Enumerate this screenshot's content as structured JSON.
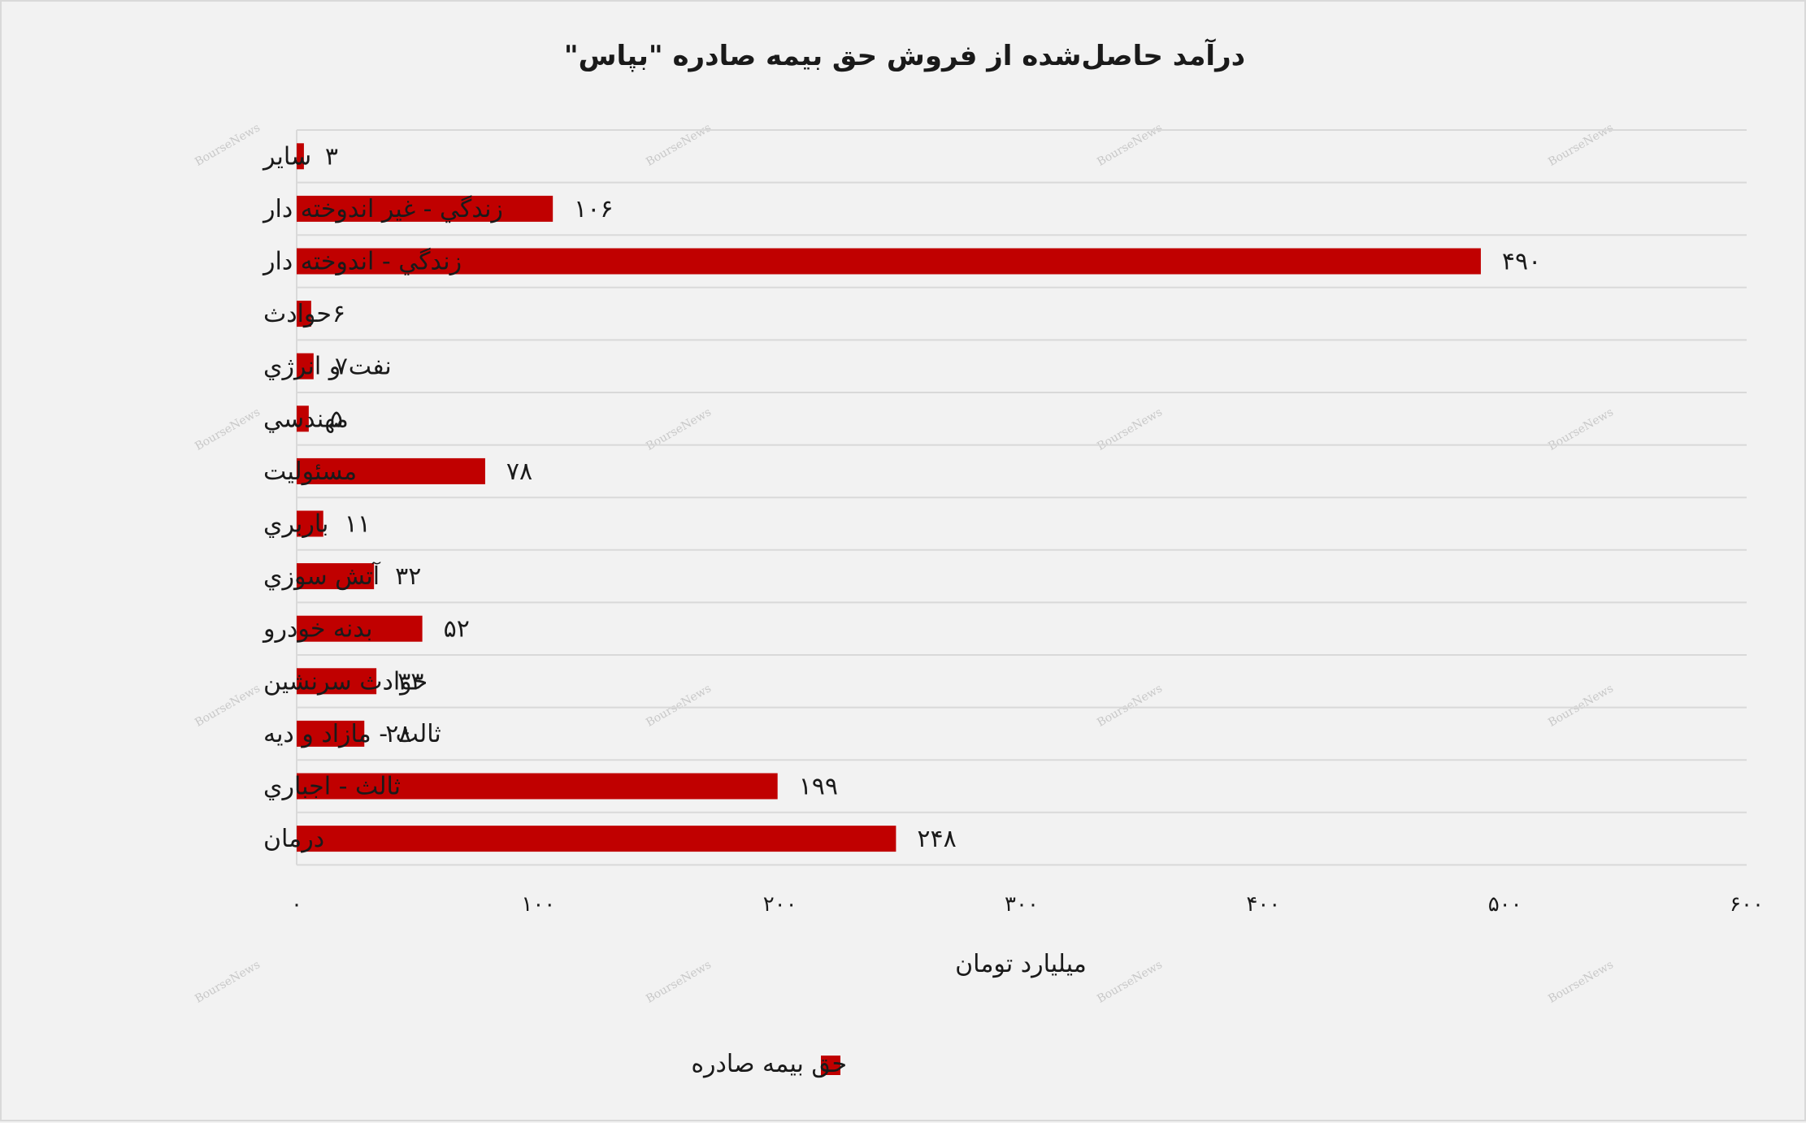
{
  "chart_data": {
    "type": "bar",
    "orientation": "horizontal",
    "title": "درآمد حاصل‌شده از فروش حق بیمه صادره \"بپاس\"",
    "xlabel": "میلیارد تومان",
    "xlim": [
      0,
      600
    ],
    "x_ticks": [
      0,
      100,
      200,
      300,
      400,
      500,
      600
    ],
    "x_tick_labels": [
      "۰",
      "۱۰۰",
      "۲۰۰",
      "۳۰۰",
      "۴۰۰",
      "۵۰۰",
      "۶۰۰"
    ],
    "categories": [
      "ساير",
      "زندگي - غير اندوخته دار",
      "زندگي - اندوخته دار",
      "حوادث",
      "نفت و انرژي",
      "مهندسي",
      "مسئوليت",
      "باربري",
      "آتش سوزي",
      "بدنه خودرو",
      "حوادث سرنشين",
      "ثالث - مازاد و ديه",
      "ثالث - اجباري",
      "درمان"
    ],
    "series": [
      {
        "name": "حق بیمه صادره",
        "color": "#c00000",
        "values": [
          3,
          106,
          490,
          6,
          7,
          5,
          78,
          11,
          32,
          52,
          33,
          28,
          199,
          248
        ],
        "value_labels": [
          "۳",
          "۱۰۶",
          "۴۹۰",
          "۶",
          "۷",
          "۵",
          "۷۸",
          "۱۱",
          "۳۲",
          "۵۲",
          "۳۳",
          "۲۸",
          "۱۹۹",
          "۲۴۸"
        ]
      }
    ],
    "grid": true,
    "legend_position": "bottom",
    "watermark": "BourseNews"
  }
}
